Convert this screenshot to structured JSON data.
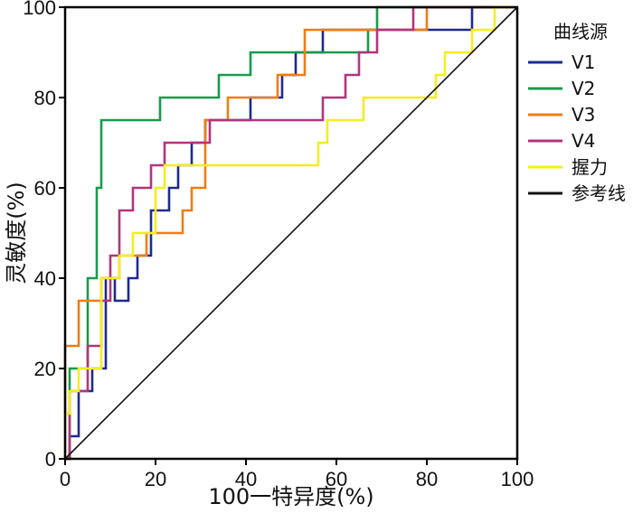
{
  "chart_data": {
    "type": "line",
    "title": "",
    "xlabel": "100一特异度(%)",
    "ylabel": "灵敏度(%)",
    "xlim": [
      0,
      100
    ],
    "ylim": [
      0,
      100
    ],
    "x_ticks": [
      "0",
      "20",
      "40",
      "60",
      "80",
      "100"
    ],
    "y_ticks": [
      "0",
      "20",
      "40",
      "60",
      "80",
      "100"
    ],
    "grid": false,
    "legend": {
      "title": "曲线源",
      "placement": "right"
    },
    "series": [
      {
        "name": "V1",
        "color": "#1f2a8c",
        "x": [
          0,
          1,
          1,
          3,
          3,
          6,
          6,
          9,
          9,
          11,
          11,
          14,
          14,
          16,
          16,
          19,
          19,
          23,
          23,
          25,
          25,
          28,
          28,
          31,
          31,
          34,
          34,
          41,
          41,
          48,
          48,
          51,
          51,
          57,
          57,
          67,
          67,
          90,
          90,
          100
        ],
        "y": [
          0,
          0,
          5,
          5,
          15,
          15,
          20,
          20,
          40,
          40,
          35,
          35,
          40,
          40,
          45,
          45,
          55,
          55,
          60,
          60,
          65,
          65,
          70,
          70,
          75,
          75,
          75,
          75,
          80,
          80,
          85,
          85,
          90,
          90,
          95,
          95,
          95,
          95,
          100,
          100
        ]
      },
      {
        "name": "V2",
        "color": "#1a9a4b",
        "x": [
          0,
          1,
          1,
          3,
          3,
          5,
          5,
          7,
          7,
          8,
          8,
          18,
          18,
          21,
          21,
          34,
          34,
          41,
          41,
          67,
          67,
          69,
          69,
          100
        ],
        "y": [
          0,
          0,
          20,
          20,
          20,
          20,
          40,
          40,
          60,
          60,
          75,
          75,
          75,
          75,
          80,
          80,
          85,
          85,
          90,
          90,
          95,
          95,
          100,
          100
        ]
      },
      {
        "name": "V3",
        "color": "#f07d14",
        "x": [
          0,
          0,
          0,
          3,
          3,
          4,
          4,
          8,
          8,
          12,
          12,
          18,
          18,
          26,
          26,
          28,
          28,
          31,
          31,
          36,
          36,
          47,
          47,
          53,
          53,
          56,
          56,
          80,
          80,
          100
        ],
        "y": [
          0,
          15,
          25,
          25,
          35,
          35,
          35,
          35,
          40,
          40,
          45,
          45,
          50,
          50,
          55,
          55,
          60,
          60,
          75,
          75,
          80,
          80,
          85,
          85,
          95,
          95,
          95,
          95,
          100,
          100
        ]
      },
      {
        "name": "V4",
        "color": "#b1347e",
        "x": [
          0,
          1,
          1,
          5,
          5,
          8,
          8,
          10,
          10,
          12,
          12,
          15,
          15,
          19,
          19,
          22,
          22,
          26,
          26,
          32,
          32,
          57,
          57,
          62,
          62,
          65,
          65,
          69,
          69,
          77,
          77,
          100
        ],
        "y": [
          0,
          0,
          15,
          15,
          25,
          25,
          35,
          35,
          45,
          45,
          55,
          55,
          60,
          60,
          65,
          65,
          70,
          70,
          70,
          70,
          75,
          75,
          80,
          80,
          85,
          85,
          90,
          90,
          95,
          95,
          100,
          100
        ]
      },
      {
        "name": "握力",
        "color": "#f4ee1d",
        "x": [
          0,
          0,
          0,
          1,
          1,
          3,
          3,
          8,
          8,
          12,
          12,
          15,
          15,
          20,
          20,
          22,
          22,
          56,
          56,
          58,
          58,
          66,
          66,
          82,
          82,
          84,
          84,
          90,
          90,
          95,
          95,
          100
        ],
        "y": [
          0,
          10,
          10,
          10,
          15,
          15,
          20,
          20,
          40,
          40,
          45,
          45,
          50,
          50,
          60,
          60,
          65,
          65,
          70,
          70,
          75,
          75,
          80,
          80,
          85,
          85,
          90,
          90,
          95,
          95,
          100,
          100
        ]
      },
      {
        "name": "参考线",
        "color": "#111111",
        "x": [
          0,
          100
        ],
        "y": [
          0,
          100
        ]
      }
    ]
  }
}
